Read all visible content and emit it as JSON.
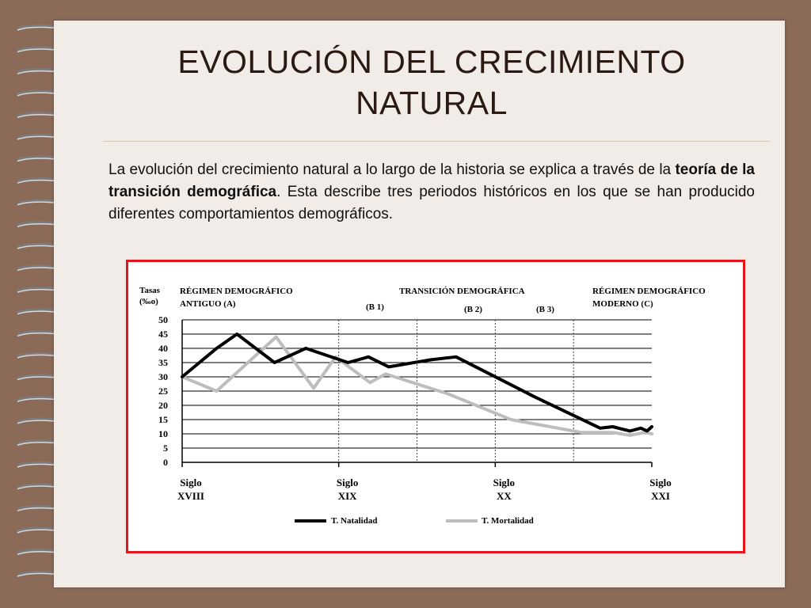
{
  "slide": {
    "title_line1": "EVOLUCIÓN DEL CRECIMIENTO",
    "title_line2": "NATURAL",
    "intro_part1": "La evolución del crecimiento natural a lo largo de la historia se explica a través de la ",
    "intro_bold": "teoría de la transición demográfica",
    "intro_part2": ". Esta describe tres periodos históricos en los que se han producido diferentes comportamientos demográficos."
  },
  "colors": {
    "background": "#8b6b58",
    "paper": "#f1ece7",
    "frame": "#e3141c",
    "natalidad": "#000000",
    "mortalidad": "#bdbdbd"
  },
  "chart_data": {
    "type": "line",
    "ylabel_line1": "Tasas",
    "ylabel_line2": "(‰o)",
    "ylim": [
      0,
      50
    ],
    "yticks": [
      "50",
      "45",
      "40",
      "35",
      "30",
      "25",
      "20",
      "15",
      "10",
      "5",
      "0"
    ],
    "xlim": [
      1700,
      2000
    ],
    "xticks": [
      {
        "x": 1700,
        "line1": "Siglo",
        "line2": "XVIII"
      },
      {
        "x": 1800,
        "line1": "Siglo",
        "line2": "XIX"
      },
      {
        "x": 1900,
        "line1": "Siglo",
        "line2": "XX"
      },
      {
        "x": 2000,
        "line1": "Siglo",
        "line2": "XXI"
      }
    ],
    "grid": true,
    "phase_dividers": [
      1800,
      1950
    ],
    "subphase_dividers": [
      1850,
      1900
    ],
    "region_labels": {
      "a_line1": "RÉGIMEN DEMOGRÁFICO",
      "a_line2": "ANTIGUO   (A)",
      "b_title": "TRANSICIÓN DEMOGRÁFICA",
      "b1": "(B 1)",
      "b2": "(B 2)",
      "b3": "(B 3)",
      "c_line1": "RÉGIMEN DEMOGRÁFICO",
      "c_line2": "MODERNO (C)"
    },
    "legend_position": "bottom",
    "series": [
      {
        "name": "T. Natalidad",
        "x": [
          1700,
          1722,
          1735,
          1759,
          1779,
          1806,
          1819,
          1832,
          1859,
          1875,
          1925,
          1967,
          1975,
          1986,
          1993,
          1997,
          2000
        ],
        "values": [
          30,
          40,
          45,
          35,
          40,
          35,
          37,
          33.5,
          36,
          37,
          23,
          12,
          12.5,
          11,
          12,
          11,
          12.5
        ]
      },
      {
        "name": "T. Mortalidad",
        "x": [
          1700,
          1722,
          1760,
          1784,
          1798,
          1820,
          1830,
          1870,
          1910,
          1955,
          1975,
          1986,
          1996,
          2000
        ],
        "values": [
          30,
          25,
          44,
          26,
          37,
          28,
          31,
          24,
          15,
          10.5,
          10.5,
          9.5,
          10.5,
          10
        ]
      }
    ]
  }
}
